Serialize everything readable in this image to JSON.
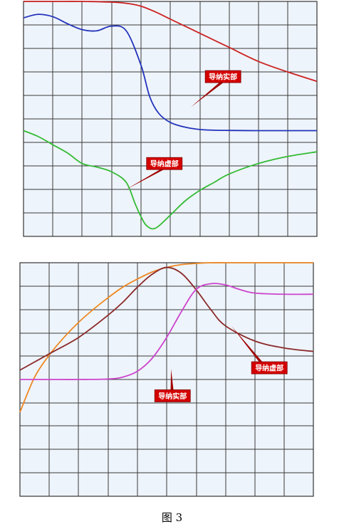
{
  "caption": "图 3",
  "chart_data": [
    {
      "type": "line",
      "title": "",
      "xlabel": "",
      "ylabel": "",
      "xlim": [
        0,
        10
      ],
      "ylim": [
        0,
        10
      ],
      "grid": true,
      "annotations": [
        {
          "text": "导纳实部",
          "x": 6.8,
          "y": 6.8,
          "target_x": 5.7,
          "target_y": 5.5
        },
        {
          "text": "导纳虚部",
          "x": 4.8,
          "y": 3.1,
          "target_x": 3.5,
          "target_y": 2.0
        }
      ],
      "series": [
        {
          "color": "#cc2222",
          "x": [
            0,
            1,
            2,
            3,
            3.5,
            4,
            4.5,
            5,
            5.5,
            6,
            7,
            8,
            9,
            10
          ],
          "y": [
            10,
            10,
            10,
            9.97,
            9.92,
            9.8,
            9.55,
            9.25,
            8.95,
            8.65,
            8.05,
            7.45,
            7.0,
            6.6
          ]
        },
        {
          "color": "#2233bb",
          "x": [
            0,
            0.5,
            1,
            1.5,
            2,
            2.5,
            3,
            3.5,
            4,
            4.3,
            4.6,
            5,
            5.5,
            6,
            6.5,
            7,
            8,
            9,
            10
          ],
          "y": [
            9.3,
            9.45,
            9.35,
            9.05,
            8.8,
            8.75,
            8.95,
            8.75,
            7.3,
            5.95,
            5.25,
            4.85,
            4.65,
            4.55,
            4.52,
            4.51,
            4.5,
            4.5,
            4.5
          ]
        },
        {
          "color": "#33bb33",
          "x": [
            0,
            0.5,
            1,
            1.5,
            2,
            2.5,
            3,
            3.5,
            3.8,
            4,
            4.2,
            4.5,
            5,
            5.5,
            6,
            6.5,
            7,
            8,
            9,
            10
          ],
          "y": [
            4.5,
            4.25,
            3.9,
            3.55,
            3.1,
            2.95,
            2.75,
            2.3,
            1.4,
            0.85,
            0.45,
            0.35,
            0.9,
            1.5,
            1.95,
            2.3,
            2.65,
            3.1,
            3.4,
            3.6
          ]
        }
      ]
    },
    {
      "type": "line",
      "title": "",
      "xlabel": "",
      "ylabel": "",
      "xlim": [
        0,
        10
      ],
      "ylim": [
        0,
        10
      ],
      "grid": true,
      "annotations": [
        {
          "text": "导纳虚部",
          "x": 8.5,
          "y": 5.5,
          "target_x": 7.2,
          "target_y": 7.3
        },
        {
          "text": "导纳实部",
          "x": 5.2,
          "y": 4.3,
          "target_x": 5.15,
          "target_y": 5.45
        }
      ],
      "series": [
        {
          "color": "#ee8822",
          "x": [
            0,
            0.5,
            1,
            1.5,
            2,
            2.5,
            3,
            3.5,
            4,
            4.5,
            5,
            5.5,
            6,
            6.5,
            7,
            8,
            9,
            10
          ],
          "y": [
            3.6,
            5.1,
            6.05,
            6.8,
            7.45,
            8.0,
            8.5,
            8.95,
            9.3,
            9.6,
            9.8,
            9.92,
            9.97,
            10,
            10,
            10,
            10,
            10
          ]
        },
        {
          "color": "#8b2a2a",
          "x": [
            0,
            1,
            2,
            3,
            3.5,
            4,
            4.5,
            5,
            5.5,
            6,
            6.5,
            7,
            8,
            9,
            10
          ],
          "y": [
            5.4,
            6.1,
            6.8,
            7.75,
            8.3,
            8.95,
            9.5,
            9.8,
            9.55,
            8.85,
            8.0,
            7.3,
            6.65,
            6.35,
            6.2
          ]
        },
        {
          "color": "#cc44cc",
          "x": [
            0,
            1,
            2,
            3,
            3.5,
            4,
            4.5,
            5,
            5.5,
            6,
            6.5,
            7,
            7.5,
            8,
            9,
            10
          ],
          "y": [
            5.0,
            5.0,
            5.0,
            5.02,
            5.1,
            5.35,
            5.9,
            6.8,
            7.9,
            8.85,
            9.1,
            9.05,
            8.85,
            8.7,
            8.65,
            8.65
          ]
        }
      ]
    }
  ]
}
